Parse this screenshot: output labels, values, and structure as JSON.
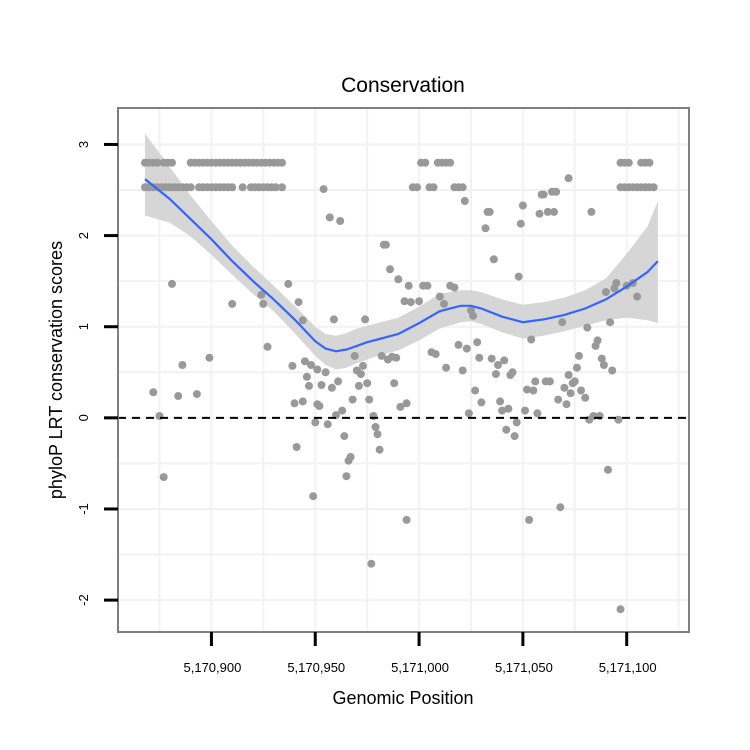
{
  "chart_data": {
    "type": "scatter",
    "title": "Conservation",
    "xlabel": "Genomic Position",
    "ylabel": "phyloP LRT conservation scores",
    "xlim": [
      5170855,
      5171130
    ],
    "ylim": [
      -2.35,
      3.4
    ],
    "x_ticks": [
      5170900,
      5170950,
      5171000,
      5171050,
      5171100
    ],
    "x_tick_labels": [
      "5,170,900",
      "5,170,950",
      "5,171,000",
      "5,171,050",
      "5,171,100"
    ],
    "y_ticks": [
      -2,
      -1,
      0,
      1,
      2,
      3
    ],
    "y_tick_labels": [
      "-2",
      "-1",
      "0",
      "1",
      "2",
      "3"
    ],
    "reference_line": {
      "y": 0,
      "style": "dashed",
      "color": "#000000"
    },
    "colors": {
      "points": "#999999",
      "smooth": "#3366ff",
      "ribbon": "#d6d6d6",
      "grid": "#f2f2f2",
      "panel_border": "#7f7f7f"
    },
    "points": [
      [
        5170868,
        2.8
      ],
      [
        5170870,
        2.8
      ],
      [
        5170872,
        2.8
      ],
      [
        5170874,
        2.8
      ],
      [
        5170877,
        2.8
      ],
      [
        5170879,
        2.8
      ],
      [
        5170881,
        2.8
      ],
      [
        5170868,
        2.53
      ],
      [
        5170870,
        2.53
      ],
      [
        5170872,
        2.53
      ],
      [
        5170874,
        2.53
      ],
      [
        5170876,
        2.53
      ],
      [
        5170878,
        2.53
      ],
      [
        5170880,
        2.53
      ],
      [
        5170882,
        2.53
      ],
      [
        5170884,
        2.53
      ],
      [
        5170886,
        2.53
      ],
      [
        5170888,
        2.53
      ],
      [
        5170890,
        2.53
      ],
      [
        5170890,
        2.8
      ],
      [
        5170892,
        2.8
      ],
      [
        5170894,
        2.8
      ],
      [
        5170896,
        2.8
      ],
      [
        5170898,
        2.8
      ],
      [
        5170900,
        2.8
      ],
      [
        5170902,
        2.8
      ],
      [
        5170904,
        2.8
      ],
      [
        5170906,
        2.8
      ],
      [
        5170908,
        2.8
      ],
      [
        5170910,
        2.8
      ],
      [
        5170912,
        2.8
      ],
      [
        5170914,
        2.8
      ],
      [
        5170916,
        2.8
      ],
      [
        5170918,
        2.8
      ],
      [
        5170920,
        2.8
      ],
      [
        5170922,
        2.8
      ],
      [
        5170924,
        2.8
      ],
      [
        5170926,
        2.8
      ],
      [
        5170928,
        2.8
      ],
      [
        5170930,
        2.8
      ],
      [
        5170932,
        2.8
      ],
      [
        5170934,
        2.8
      ],
      [
        5170894,
        2.53
      ],
      [
        5170896,
        2.53
      ],
      [
        5170898,
        2.53
      ],
      [
        5170900,
        2.53
      ],
      [
        5170902,
        2.53
      ],
      [
        5170904,
        2.53
      ],
      [
        5170906,
        2.53
      ],
      [
        5170908,
        2.53
      ],
      [
        5170910,
        2.53
      ],
      [
        5170915,
        2.53
      ],
      [
        5170919,
        2.53
      ],
      [
        5170921,
        2.53
      ],
      [
        5170923,
        2.53
      ],
      [
        5170925,
        2.53
      ],
      [
        5170927,
        2.53
      ],
      [
        5170929,
        2.53
      ],
      [
        5170931,
        2.53
      ],
      [
        5170934,
        2.53
      ],
      [
        5170872,
        0.28
      ],
      [
        5170875,
        0.02
      ],
      [
        5170877,
        -0.65
      ],
      [
        5170881,
        1.47
      ],
      [
        5170884,
        0.24
      ],
      [
        5170886,
        0.58
      ],
      [
        5170893,
        0.26
      ],
      [
        5170899,
        0.66
      ],
      [
        5170910,
        1.25
      ],
      [
        5170924,
        1.35
      ],
      [
        5170925,
        1.25
      ],
      [
        5170927,
        0.78
      ],
      [
        5170937,
        1.47
      ],
      [
        5170939,
        0.57
      ],
      [
        5170940,
        0.16
      ],
      [
        5170941,
        -0.32
      ],
      [
        5170942,
        1.27
      ],
      [
        5170944,
        0.18
      ],
      [
        5170944,
        1.07
      ],
      [
        5170945,
        0.62
      ],
      [
        5170946,
        0.45
      ],
      [
        5170947,
        0.35
      ],
      [
        5170948,
        0.58
      ],
      [
        5170949,
        -0.86
      ],
      [
        5170950,
        -0.05
      ],
      [
        5170951,
        0.15
      ],
      [
        5170951,
        0.53
      ],
      [
        5170952,
        0.13
      ],
      [
        5170953,
        0.36
      ],
      [
        5170954,
        2.51
      ],
      [
        5170955,
        0.5
      ],
      [
        5170956,
        -0.07
      ],
      [
        5170957,
        2.2
      ],
      [
        5170958,
        0.33
      ],
      [
        5170959,
        1.08
      ],
      [
        5170960,
        0.03
      ],
      [
        5170961,
        0.4
      ],
      [
        5170962,
        2.16
      ],
      [
        5170963,
        0.08
      ],
      [
        5170964,
        -0.2
      ],
      [
        5170965,
        -0.64
      ],
      [
        5170966,
        -0.47
      ],
      [
        5170967,
        -0.43
      ],
      [
        5170968,
        0.2
      ],
      [
        5170969,
        0.68
      ],
      [
        5170970,
        0.52
      ],
      [
        5170971,
        0.35
      ],
      [
        5170972,
        0.48
      ],
      [
        5170973,
        0.57
      ],
      [
        5170974,
        1.08
      ],
      [
        5170975,
        0.38
      ],
      [
        5170976,
        0.2
      ],
      [
        5170977,
        -1.6
      ],
      [
        5170978,
        0.02
      ],
      [
        5170979,
        -0.1
      ],
      [
        5170980,
        -0.18
      ],
      [
        5170981,
        -0.35
      ],
      [
        5170982,
        0.68
      ],
      [
        5170983,
        1.9
      ],
      [
        5170984,
        1.9
      ],
      [
        5170985,
        0.64
      ],
      [
        5170986,
        1.63
      ],
      [
        5170987,
        0.67
      ],
      [
        5170988,
        0.38
      ],
      [
        5170989,
        0.66
      ],
      [
        5170990,
        1.52
      ],
      [
        5170991,
        0.12
      ],
      [
        5170993,
        1.28
      ],
      [
        5170994,
        -1.12
      ],
      [
        5170994,
        0.16
      ],
      [
        5170995,
        1.45
      ],
      [
        5170996,
        1.27
      ],
      [
        5170997,
        2.53
      ],
      [
        5170999,
        2.53
      ],
      [
        5171001,
        2.8
      ],
      [
        5171003,
        2.8
      ],
      [
        5171005,
        2.53
      ],
      [
        5171007,
        2.53
      ],
      [
        5171009,
        2.8
      ],
      [
        5171011,
        2.8
      ],
      [
        5171013,
        2.8
      ],
      [
        5171015,
        2.8
      ],
      [
        5171017,
        2.53
      ],
      [
        5171019,
        2.53
      ],
      [
        5171021,
        2.53
      ],
      [
        5171000,
        1.28
      ],
      [
        5171002,
        1.45
      ],
      [
        5171004,
        1.45
      ],
      [
        5171006,
        0.72
      ],
      [
        5171008,
        0.7
      ],
      [
        5171010,
        1.33
      ],
      [
        5171012,
        1.25
      ],
      [
        5171013,
        0.55
      ],
      [
        5171015,
        1.45
      ],
      [
        5171017,
        1.43
      ],
      [
        5171019,
        0.8
      ],
      [
        5171021,
        0.52
      ],
      [
        5171022,
        2.38
      ],
      [
        5171023,
        0.76
      ],
      [
        5171024,
        0.05
      ],
      [
        5171025,
        1.18
      ],
      [
        5171026,
        1.12
      ],
      [
        5171027,
        0.3
      ],
      [
        5171028,
        0.83
      ],
      [
        5171029,
        0.66
      ],
      [
        5171030,
        0.17
      ],
      [
        5171032,
        2.08
      ],
      [
        5171033,
        2.26
      ],
      [
        5171034,
        2.26
      ],
      [
        5171035,
        0.65
      ],
      [
        5171036,
        1.74
      ],
      [
        5171037,
        0.48
      ],
      [
        5171038,
        0.58
      ],
      [
        5171039,
        0.18
      ],
      [
        5171040,
        0.08
      ],
      [
        5171041,
        0.63
      ],
      [
        5171042,
        -0.13
      ],
      [
        5171043,
        0.1
      ],
      [
        5171044,
        0.47
      ],
      [
        5171045,
        0.5
      ],
      [
        5171046,
        -0.2
      ],
      [
        5171047,
        -0.05
      ],
      [
        5171048,
        1.55
      ],
      [
        5171049,
        2.13
      ],
      [
        5171050,
        2.33
      ],
      [
        5171051,
        0.08
      ],
      [
        5171052,
        0.31
      ],
      [
        5171053,
        -1.12
      ],
      [
        5171054,
        0.86
      ],
      [
        5171055,
        0.3
      ],
      [
        5171056,
        0.4
      ],
      [
        5171057,
        0.05
      ],
      [
        5171058,
        2.24
      ],
      [
        5171059,
        2.45
      ],
      [
        5171060,
        2.45
      ],
      [
        5171061,
        0.4
      ],
      [
        5171062,
        2.26
      ],
      [
        5171063,
        0.4
      ],
      [
        5171064,
        2.48
      ],
      [
        5171065,
        2.26
      ],
      [
        5171066,
        2.48
      ],
      [
        5171067,
        0.2
      ],
      [
        5171068,
        -0.98
      ],
      [
        5171069,
        1.05
      ],
      [
        5171070,
        0.33
      ],
      [
        5171071,
        0.15
      ],
      [
        5171072,
        0.47
      ],
      [
        5171072,
        2.63
      ],
      [
        5171073,
        0.27
      ],
      [
        5171074,
        0.38
      ],
      [
        5171075,
        0.4
      ],
      [
        5171076,
        0.55
      ],
      [
        5171077,
        0.68
      ],
      [
        5171078,
        0.3
      ],
      [
        5171080,
        0.22
      ],
      [
        5171081,
        0.99
      ],
      [
        5171082,
        -0.02
      ],
      [
        5171083,
        2.26
      ],
      [
        5171084,
        0.02
      ],
      [
        5171085,
        0.79
      ],
      [
        5171086,
        0.85
      ],
      [
        5171087,
        0.02
      ],
      [
        5171088,
        0.65
      ],
      [
        5171089,
        0.58
      ],
      [
        5171090,
        1.38
      ],
      [
        5171091,
        -0.57
      ],
      [
        5171092,
        1.05
      ],
      [
        5171093,
        0.52
      ],
      [
        5171094,
        1.42
      ],
      [
        5171095,
        1.48
      ],
      [
        5171096,
        -0.02
      ],
      [
        5171097,
        -2.1
      ],
      [
        5171097,
        2.8
      ],
      [
        5171099,
        2.8
      ],
      [
        5171101,
        2.8
      ],
      [
        5171107,
        2.8
      ],
      [
        5171109,
        2.8
      ],
      [
        5171111,
        2.8
      ],
      [
        5171097,
        2.53
      ],
      [
        5171099,
        2.53
      ],
      [
        5171101,
        2.53
      ],
      [
        5171103,
        2.53
      ],
      [
        5171105,
        2.53
      ],
      [
        5171107,
        2.53
      ],
      [
        5171109,
        2.53
      ],
      [
        5171111,
        2.53
      ],
      [
        5171113,
        2.53
      ],
      [
        5171100,
        1.45
      ],
      [
        5171103,
        1.48
      ],
      [
        5171105,
        1.33
      ]
    ],
    "smooth": {
      "x": [
        5170868,
        5170880,
        5170890,
        5170900,
        5170910,
        5170920,
        5170930,
        5170940,
        5170950,
        5170955,
        5170960,
        5170965,
        5170970,
        5170975,
        5170980,
        5170990,
        5171000,
        5171010,
        5171020,
        5171025,
        5171030,
        5171040,
        5171050,
        5171060,
        5171070,
        5171080,
        5171090,
        5171100,
        5171110,
        5171115
      ],
      "y": [
        2.62,
        2.4,
        2.18,
        1.96,
        1.72,
        1.5,
        1.3,
        1.08,
        0.84,
        0.76,
        0.73,
        0.75,
        0.79,
        0.83,
        0.86,
        0.92,
        1.04,
        1.17,
        1.23,
        1.23,
        1.2,
        1.11,
        1.05,
        1.08,
        1.13,
        1.2,
        1.3,
        1.44,
        1.6,
        1.72
      ],
      "lower": [
        2.22,
        2.14,
        1.99,
        1.79,
        1.57,
        1.36,
        1.17,
        0.93,
        0.68,
        0.58,
        0.53,
        0.55,
        0.6,
        0.64,
        0.68,
        0.74,
        0.85,
        0.98,
        1.05,
        1.06,
        1.03,
        0.94,
        0.87,
        0.9,
        0.95,
        1.01,
        1.07,
        1.1,
        1.07,
        1.04
      ],
      "upper": [
        3.12,
        2.75,
        2.44,
        2.16,
        1.89,
        1.66,
        1.45,
        1.23,
        1.0,
        0.92,
        0.9,
        0.93,
        0.98,
        1.01,
        1.04,
        1.1,
        1.22,
        1.36,
        1.4,
        1.4,
        1.38,
        1.3,
        1.24,
        1.27,
        1.32,
        1.4,
        1.53,
        1.8,
        2.1,
        2.38
      ]
    }
  }
}
